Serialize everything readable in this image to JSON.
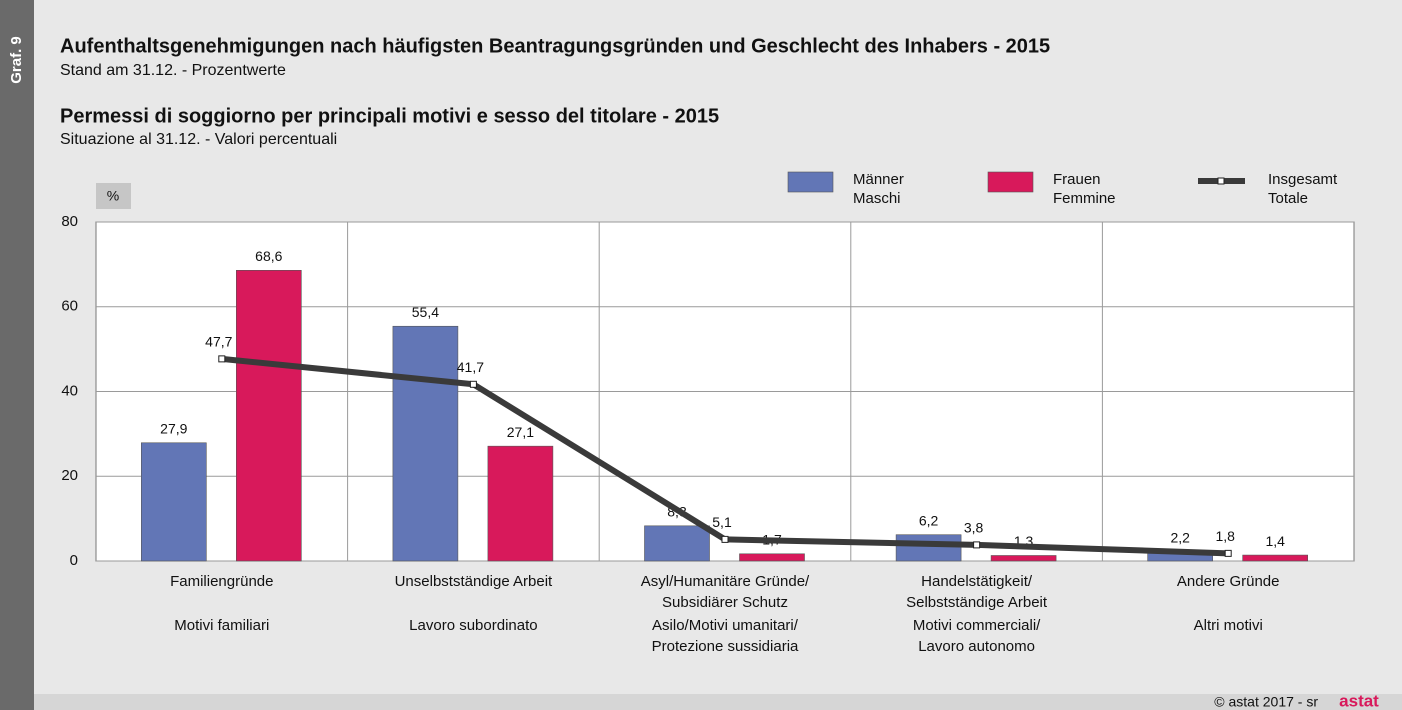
{
  "graphic_label": "Graf. 9",
  "chart_data": {
    "type": "bar",
    "title": "Aufenthaltsgenehmigungen nach häufigsten Beantragungsgründen und Geschlecht des Inhabers - 2015",
    "subtitle": "Stand am 31.12. - Prozentwerte",
    "title_2": "Permessi di soggiorno per principali motivi e sesso del titolare - 2015",
    "subtitle_2": "Situazione al 31.12. - Valori percentuali",
    "y_unit": "%",
    "categories": [
      [
        [
          "Familiengründe"
        ],
        [
          "Motivi familiari"
        ]
      ],
      [
        [
          "Unselbstständige Arbeit"
        ],
        [
          "Lavoro subordinato"
        ]
      ],
      [
        [
          "Asyl/Humanitäre Gründe/",
          "Subsidiärer Schutz"
        ],
        [
          "Asilo/Motivi umanitari/",
          "Protezione sussidiaria"
        ]
      ],
      [
        [
          "Handelstätigkeit/",
          "Selbstständige Arbeit"
        ],
        [
          "Motivi commerciali/",
          "Lavoro autonomo"
        ]
      ],
      [
        [
          "Andere Gründe"
        ],
        [
          "Altri motivi"
        ]
      ]
    ],
    "series": [
      {
        "name": [
          "Männer",
          "Maschi"
        ],
        "type": "bar",
        "color": "#6276b6",
        "values": [
          27.9,
          55.4,
          8.3,
          6.2,
          2.2
        ],
        "value_labels": [
          "27,9",
          "55,4",
          "8,3",
          "6,2",
          "2,2"
        ]
      },
      {
        "name": [
          "Frauen",
          "Femmine"
        ],
        "type": "bar",
        "color": "#d8195b",
        "values": [
          68.6,
          27.1,
          1.7,
          1.3,
          1.4
        ],
        "value_labels": [
          "68,6",
          "27,1",
          "1,7",
          "1,3",
          "1,4"
        ]
      },
      {
        "name": [
          "Insgesamt",
          "Totale"
        ],
        "type": "line",
        "color": "#3a3a3a",
        "values": [
          47.7,
          41.7,
          5.1,
          3.8,
          1.8
        ],
        "value_labels": [
          "47,7",
          "41,7",
          "5,1",
          "3,8",
          "1,8"
        ]
      }
    ],
    "ylim": [
      0,
      80
    ],
    "yticks": [
      0,
      20,
      40,
      60,
      80
    ],
    "grid": true
  },
  "footer": {
    "copyright": "© astat 2017 - sr",
    "logo": "astat"
  }
}
